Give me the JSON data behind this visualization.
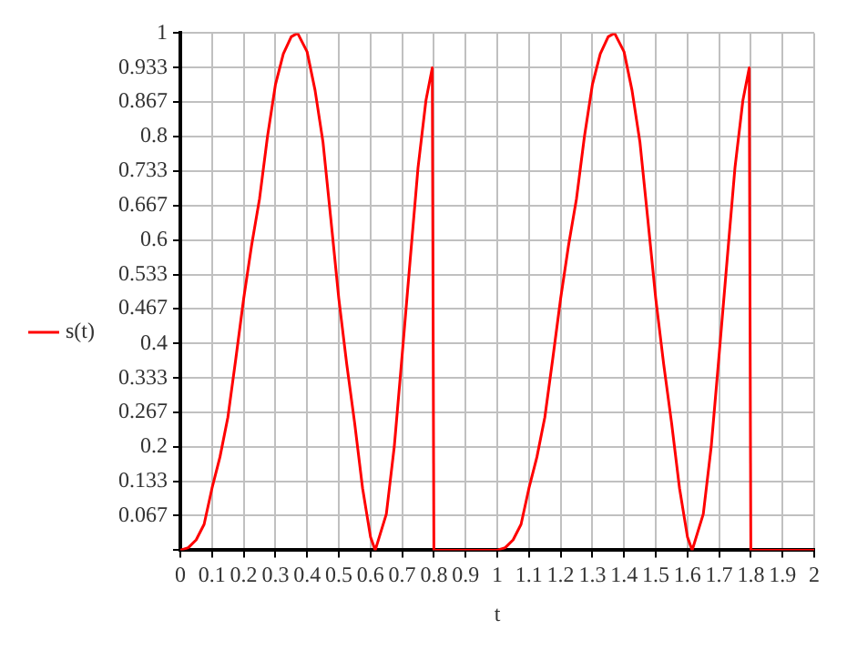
{
  "chart_data": {
    "type": "line",
    "xlabel": "t",
    "legend": "left",
    "grid": true,
    "marker": "none",
    "line_style": "solid",
    "xlim": [
      0,
      2
    ],
    "xticks": [
      0,
      0.1,
      0.2,
      0.3,
      0.4,
      0.5,
      0.6,
      0.7,
      0.8,
      0.9,
      1,
      1.1,
      1.2,
      1.3,
      1.4,
      1.5,
      1.6,
      1.7,
      1.8,
      1.9,
      2
    ],
    "ylim": [
      0,
      1
    ],
    "yticks": [
      {
        "value": 0,
        "label": null
      },
      0.067,
      0.133,
      0.2,
      0.267,
      0.333,
      0.4,
      0.467,
      0.533,
      0.6,
      0.667,
      0.733,
      0.8,
      0.867,
      0.933,
      1
    ],
    "series": [
      {
        "name": "s(t)",
        "color": "#ff0000",
        "x": [
          0,
          0.025,
          0.05,
          0.075,
          0.1,
          0.125,
          0.15,
          0.175,
          0.2,
          0.225,
          0.25,
          0.275,
          0.3,
          0.325,
          0.35,
          0.37,
          0.4,
          0.425,
          0.45,
          0.475,
          0.5,
          0.525,
          0.55,
          0.575,
          0.6,
          0.615,
          0.65,
          0.675,
          0.7,
          0.725,
          0.75,
          0.775,
          0.795,
          0.8,
          0.9,
          1,
          1.025,
          1.05,
          1.075,
          1.1,
          1.125,
          1.15,
          1.175,
          1.2,
          1.225,
          1.25,
          1.275,
          1.3,
          1.325,
          1.35,
          1.37,
          1.4,
          1.425,
          1.45,
          1.475,
          1.5,
          1.525,
          1.55,
          1.575,
          1.6,
          1.615,
          1.65,
          1.675,
          1.7,
          1.725,
          1.75,
          1.775,
          1.795,
          1.8,
          1.9,
          2
        ],
        "values": [
          0,
          0.005,
          0.02,
          0.05,
          0.12,
          0.18,
          0.257,
          0.37,
          0.487,
          0.59,
          0.68,
          0.8,
          0.9,
          0.96,
          0.993,
          1,
          0.964,
          0.89,
          0.79,
          0.64,
          0.487,
          0.36,
          0.246,
          0.12,
          0.026,
          0,
          0.07,
          0.2,
          0.378,
          0.56,
          0.74,
          0.87,
          0.933,
          0,
          0,
          0,
          0.005,
          0.02,
          0.05,
          0.12,
          0.18,
          0.257,
          0.37,
          0.487,
          0.59,
          0.68,
          0.8,
          0.9,
          0.96,
          0.993,
          1,
          0.964,
          0.89,
          0.79,
          0.64,
          0.487,
          0.36,
          0.246,
          0.12,
          0.026,
          0,
          0.07,
          0.2,
          0.378,
          0.56,
          0.74,
          0.87,
          0.933,
          0,
          0,
          0
        ]
      }
    ]
  }
}
